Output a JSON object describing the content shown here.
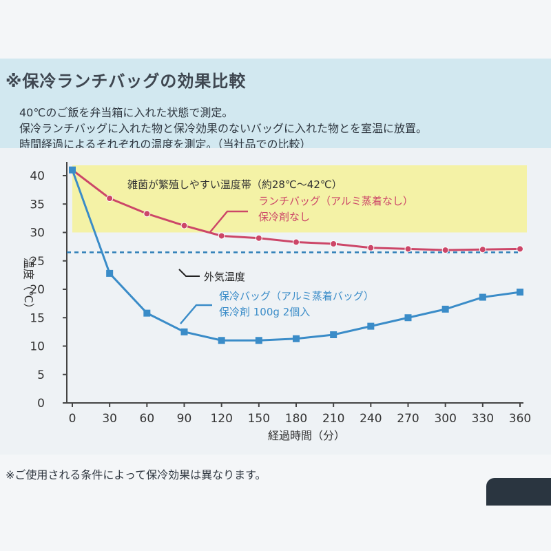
{
  "header": {
    "title": "※保冷ランチバッグの効果比較",
    "lines": [
      "40℃のご飯を弁当箱に入れた状態で測定。",
      "保冷ランチバッグに入れた物と保冷効果のないバッグに入れた物とを室温に放置。",
      "時間経過によるそれぞれの温度を測定。（当社品での比較）"
    ]
  },
  "footnote": "※ご使用される条件によって保冷効果は異なります。",
  "colors": {
    "red_series": "#cc4668",
    "blue_series": "#3a8cc8",
    "outside_line": "#2e7fb8",
    "band": "#f4f2a6"
  },
  "chart_data": {
    "type": "line",
    "x": [
      0,
      30,
      60,
      90,
      120,
      150,
      180,
      210,
      240,
      270,
      300,
      330,
      360
    ],
    "x_ticks": [
      "0",
      "30",
      "60",
      "90",
      "120",
      "150",
      "180",
      "210",
      "240",
      "270",
      "300",
      "330",
      "360"
    ],
    "y_ticks": [
      "0",
      "5",
      "10",
      "15",
      "20",
      "25",
      "30",
      "35",
      "40"
    ],
    "xlabel": "経過時間（分）",
    "ylabel": "温度（℃）",
    "xlim": [
      0,
      360
    ],
    "ylim": [
      0,
      40
    ],
    "series": [
      {
        "name": "ランチバッグ（アルミ蒸着なし）保冷剤なし",
        "label_lines": [
          "ランチバッグ（アルミ蒸着なし）",
          "保冷剤なし"
        ],
        "marker": "circle",
        "values": [
          41,
          36,
          33.3,
          31.2,
          29.4,
          29,
          28.3,
          28,
          27.3,
          27.1,
          26.9,
          27,
          27.1
        ]
      },
      {
        "name": "保冷バッグ（アルミ蒸着バッグ）保冷剤 100g 2個入",
        "label_lines": [
          "保冷バッグ（アルミ蒸着バッグ）",
          "保冷剤 100g 2個入"
        ],
        "marker": "square",
        "values": [
          41,
          22.8,
          15.8,
          12.5,
          11,
          11,
          11.3,
          12,
          13.5,
          15,
          16.5,
          18.6,
          19.5
        ]
      }
    ],
    "reference_line": {
      "label": "外気温度",
      "value": 26.5
    },
    "band": {
      "label": "雑菌が繁殖しやすい温度帯（約28℃〜42℃）",
      "from": 28,
      "to": 42
    }
  }
}
